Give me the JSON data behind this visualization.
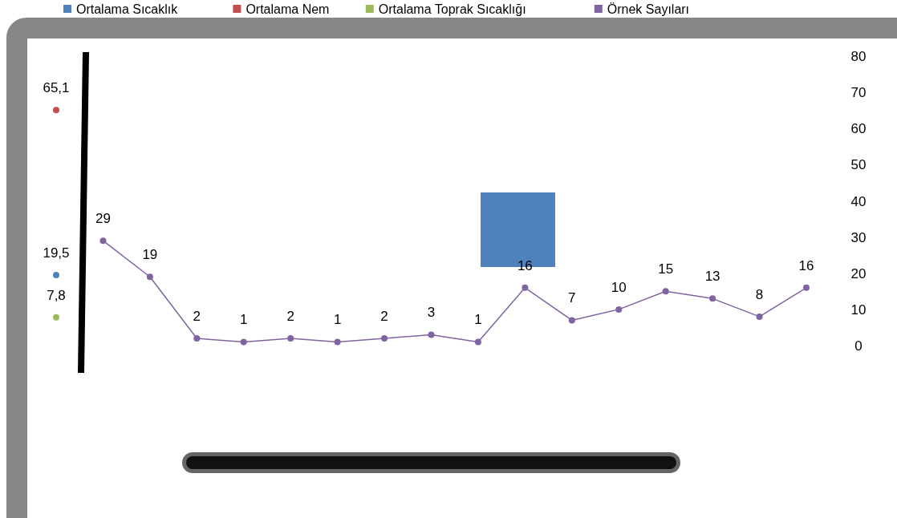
{
  "chart_data": {
    "type": "line",
    "categories": [
      null,
      null,
      null,
      null,
      null,
      null,
      null,
      null,
      null,
      null,
      null,
      null,
      null,
      null,
      null,
      null,
      null
    ],
    "series": [
      {
        "name": "Ortalama Sıcaklık",
        "color": "#4f81bd",
        "values": [
          19.5,
          null,
          null,
          null,
          null,
          null,
          null,
          null,
          null,
          null,
          null,
          null,
          null,
          null,
          null,
          null,
          null
        ],
        "value_labels": [
          "19,5",
          null,
          null,
          null,
          null,
          null,
          null,
          null,
          null,
          null,
          null,
          null,
          null,
          null,
          null,
          null,
          null
        ]
      },
      {
        "name": "Ortalama Nem",
        "color": "#c0504d",
        "values": [
          65.1,
          null,
          null,
          null,
          null,
          null,
          null,
          null,
          null,
          null,
          null,
          null,
          null,
          null,
          null,
          null,
          null
        ],
        "value_labels": [
          "65,1",
          null,
          null,
          null,
          null,
          null,
          null,
          null,
          null,
          null,
          null,
          null,
          null,
          null,
          null,
          null,
          null
        ]
      },
      {
        "name": "Ortalama Toprak Sıcaklığı",
        "color": "#9bbb59",
        "values": [
          7.8,
          null,
          null,
          null,
          null,
          null,
          null,
          null,
          null,
          null,
          null,
          null,
          null,
          null,
          null,
          null,
          null
        ],
        "value_labels": [
          "7,8",
          null,
          null,
          null,
          null,
          null,
          null,
          null,
          null,
          null,
          null,
          null,
          null,
          null,
          null,
          null,
          null
        ]
      },
      {
        "name": "Örnek Sayıları",
        "color": "#8064a2",
        "values": [
          null,
          29,
          19,
          2,
          1,
          2,
          1,
          2,
          3,
          1,
          16,
          7,
          10,
          15,
          13,
          8,
          16
        ],
        "value_labels": [
          null,
          "29",
          "19",
          "2",
          "1",
          "2",
          "1",
          "2",
          "3",
          "1",
          "16",
          "7",
          "10",
          "15",
          "13",
          "8",
          "16"
        ]
      }
    ],
    "ylim": [
      0,
      80
    ],
    "yticks": [
      0,
      10,
      20,
      30,
      40,
      50,
      60,
      70,
      80
    ],
    "legend": "top",
    "marker": "circle",
    "grid": false
  }
}
